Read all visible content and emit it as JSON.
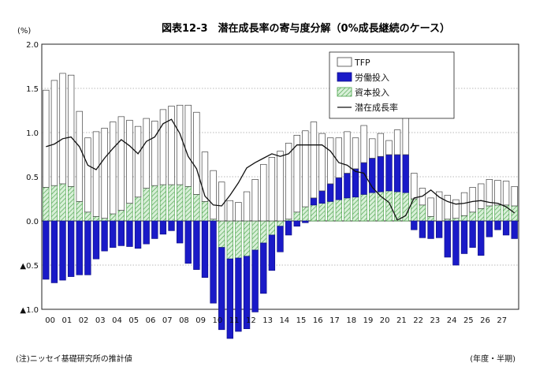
{
  "chart_data": {
    "type": "bar",
    "title": "図表12-3　潜在成長率の寄与度分解（0%成長継続のケース）",
    "yunit": "(%)",
    "ylim": [
      -1.0,
      2.0
    ],
    "yticks": [
      2.0,
      1.5,
      1.0,
      0.5,
      0.0,
      -0.5,
      -1.0
    ],
    "yticklabels": [
      "2.0",
      "1.5",
      "1.0",
      "0.5",
      "0.0",
      "▲0.5",
      "▲1.0"
    ],
    "xticklabels": [
      "00",
      "01",
      "02",
      "03",
      "04",
      "05",
      "06",
      "07",
      "08",
      "09",
      "10",
      "11",
      "12",
      "13",
      "14",
      "15",
      "16",
      "17",
      "18",
      "19",
      "20",
      "21",
      "22",
      "23",
      "24",
      "25",
      "26",
      "27"
    ],
    "xunit": "(年度・半期)",
    "note": "(注)ニッセイ基礎研究所の推計値",
    "legend_position": "top-right",
    "grid": true,
    "series": [
      {
        "name": "TFP",
        "values": [
          1.1,
          1.19,
          1.25,
          1.26,
          1.02,
          0.84,
          0.96,
          1.02,
          1.04,
          1.06,
          0.94,
          0.8,
          0.79,
          0.73,
          0.85,
          0.89,
          0.9,
          0.92,
          0.93,
          0.56,
          0.55,
          0.44,
          0.23,
          0.21,
          0.33,
          0.47,
          0.64,
          0.72,
          0.79,
          0.86,
          0.87,
          0.86,
          0.86,
          0.65,
          0.52,
          0.45,
          0.47,
          0.35,
          0.42,
          0.22,
          0.26,
          0.16,
          0.28,
          0.53,
          0.29,
          0.19,
          0.21,
          0.33,
          0.27,
          0.21,
          0.26,
          0.28,
          0.28,
          0.3,
          0.28,
          0.27,
          0.22
        ]
      },
      {
        "name": "労働投入",
        "values": [
          -0.66,
          -0.7,
          -0.67,
          -0.63,
          -0.61,
          -0.61,
          -0.43,
          -0.34,
          -0.3,
          -0.28,
          -0.29,
          -0.31,
          -0.26,
          -0.2,
          -0.15,
          -0.11,
          -0.25,
          -0.48,
          -0.55,
          -0.64,
          -0.93,
          -0.93,
          -0.9,
          -0.83,
          -0.82,
          -0.7,
          -0.57,
          -0.4,
          -0.29,
          -0.16,
          -0.06,
          -0.02,
          0.08,
          0.14,
          0.2,
          0.25,
          0.28,
          0.32,
          0.36,
          0.39,
          0.4,
          0.41,
          0.42,
          0.43,
          -0.1,
          -0.19,
          -0.2,
          -0.19,
          -0.41,
          -0.5,
          -0.37,
          -0.3,
          -0.39,
          -0.18,
          -0.1,
          -0.16,
          -0.2
        ]
      },
      {
        "name": "資本投入",
        "values": [
          0.38,
          0.4,
          0.42,
          0.39,
          0.22,
          0.1,
          0.05,
          0.03,
          0.08,
          0.12,
          0.2,
          0.27,
          0.37,
          0.4,
          0.41,
          0.41,
          0.41,
          0.39,
          0.3,
          0.22,
          0.02,
          -0.3,
          -0.43,
          -0.42,
          -0.4,
          -0.33,
          -0.25,
          -0.16,
          -0.06,
          0.02,
          0.1,
          0.16,
          0.18,
          0.2,
          0.22,
          0.24,
          0.26,
          0.27,
          0.3,
          0.32,
          0.33,
          0.34,
          0.33,
          0.32,
          0.25,
          0.18,
          0.05,
          0.0,
          0.02,
          0.03,
          0.06,
          0.1,
          0.14,
          0.17,
          0.18,
          0.18,
          0.17
        ]
      },
      {
        "name": "潜在成長率",
        "values": [
          0.84,
          0.87,
          0.93,
          0.95,
          0.84,
          0.63,
          0.58,
          0.71,
          0.82,
          0.92,
          0.85,
          0.76,
          0.9,
          0.95,
          1.1,
          1.15,
          0.99,
          0.73,
          0.59,
          0.28,
          0.18,
          0.17,
          0.29,
          0.43,
          0.6,
          0.66,
          0.71,
          0.76,
          0.73,
          0.76,
          0.86,
          0.86,
          0.86,
          0.86,
          0.79,
          0.66,
          0.63,
          0.56,
          0.54,
          0.38,
          0.28,
          0.21,
          0.01,
          0.06,
          0.26,
          0.28,
          0.35,
          0.27,
          0.22,
          0.19,
          0.2,
          0.22,
          0.23,
          0.21,
          0.2,
          0.16,
          0.09
        ]
      }
    ]
  }
}
